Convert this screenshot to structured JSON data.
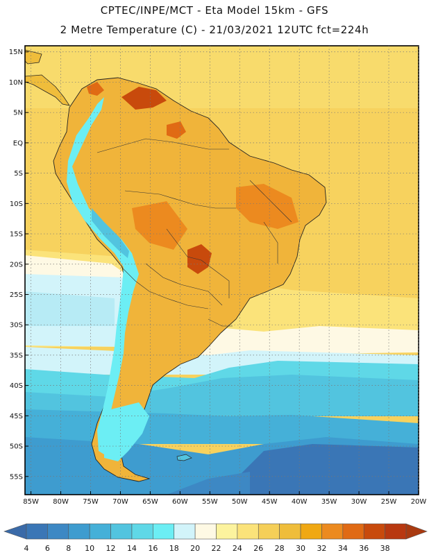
{
  "header": {
    "line1": "CPTEC/INPE/MCT -  Eta Model 15km - GFS",
    "line2": "2 Metre Temperature (C) - 21/03/2021 12UTC fct=224h"
  },
  "map": {
    "lat_labels": [
      "15N",
      "10N",
      "5N",
      "EQ",
      "5S",
      "10S",
      "15S",
      "20S",
      "25S",
      "30S",
      "35S",
      "40S",
      "45S",
      "50S",
      "55S"
    ],
    "lon_labels": [
      "85W",
      "80W",
      "75W",
      "70W",
      "65W",
      "60W",
      "55W",
      "50W",
      "45W",
      "40W",
      "35W",
      "30W",
      "25W",
      "20W"
    ],
    "lat_range": [
      16,
      -58
    ],
    "lon_range": [
      -86,
      -20
    ]
  },
  "colorbar": {
    "ticks": [
      "4",
      "6",
      "8",
      "10",
      "12",
      "14",
      "16",
      "18",
      "20",
      "22",
      "24",
      "26",
      "28",
      "30",
      "32",
      "34",
      "36",
      "38"
    ],
    "colors": [
      "#3a76b6",
      "#3d88c4",
      "#3e9ccf",
      "#45b0d8",
      "#52c4df",
      "#5fd8e7",
      "#6ceef4",
      "#d2f4fa",
      "#fef9e4",
      "#fcf39e",
      "#fbe37a",
      "#f5cf58",
      "#efbd3b",
      "#f0a813",
      "#ec8a1f",
      "#e06a14",
      "#c84a0c",
      "#b83810"
    ],
    "low_color": "#3a6aa8",
    "high_color": "#a93a10"
  }
}
